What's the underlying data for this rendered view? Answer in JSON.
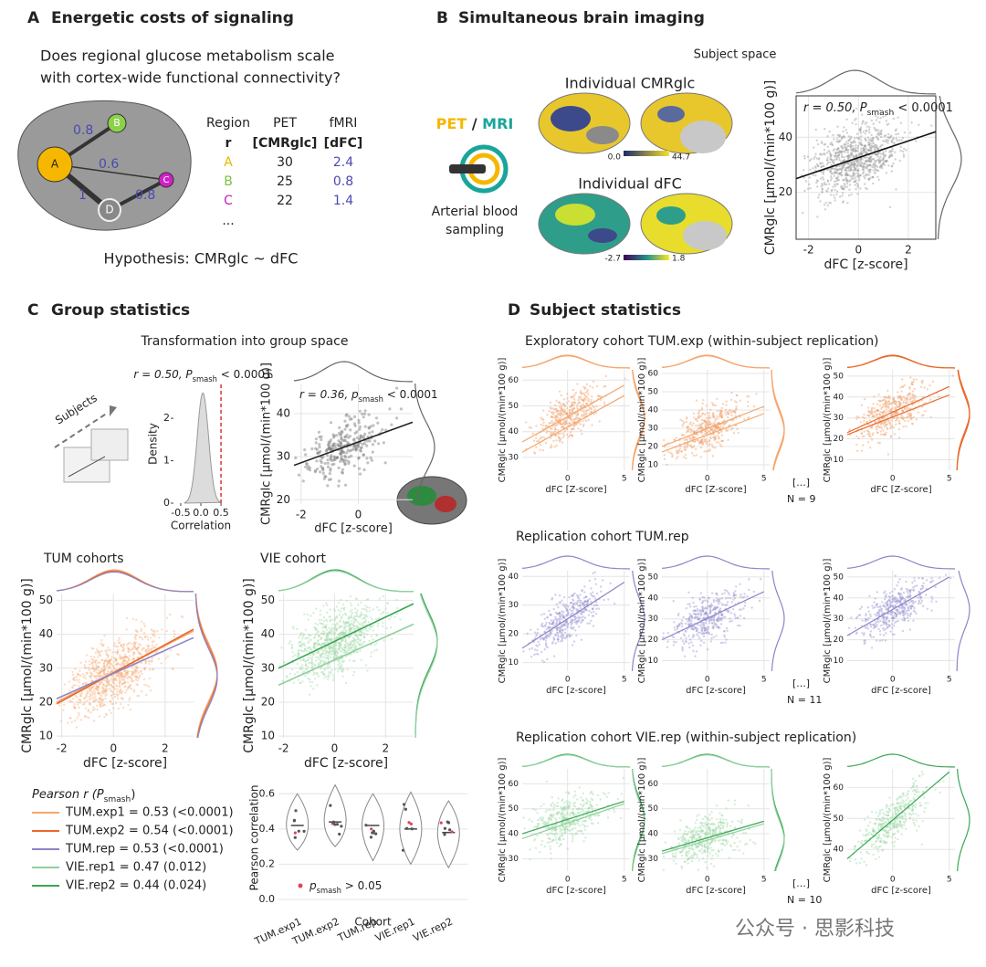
{
  "panel_a": {
    "letter": "A",
    "title": "Energetic costs of signaling",
    "question": [
      "Does regional glucose metabolism scale",
      "with cortex-wide functional connectivity?"
    ],
    "nodes": [
      "A",
      "B",
      "C",
      "D"
    ],
    "edges": [
      "0.8",
      "0.6",
      "1",
      "0.8"
    ],
    "table": {
      "header": [
        "Region",
        "PET",
        "fMRI"
      ],
      "units": [
        "r",
        "[CMRglc]",
        "[dFC]"
      ],
      "rows": [
        [
          "A",
          "30",
          "2.4"
        ],
        [
          "B",
          "25",
          "0.8"
        ],
        [
          "C",
          "22",
          "1.4"
        ]
      ],
      "more": "..."
    },
    "hypothesis": "Hypothesis: CMRglc ~ dFC"
  },
  "panel_b": {
    "letter": "B",
    "title": "Simultaneous brain imaging",
    "pet": "PET",
    "slash": " / ",
    "mri": "MRI",
    "sampling": [
      "Arterial blood",
      "sampling"
    ],
    "cmr_title": "Individual CMRglc",
    "cmr_range": [
      "0.0",
      "44.7"
    ],
    "dfc_title": "Individual dFC",
    "dfc_range": [
      "-2.7",
      "1.8"
    ],
    "space": "Subject space",
    "chart": {
      "type": "scatter",
      "annotation": {
        "r": "r = 0.50, ",
        "p": "P",
        "sub": "smash",
        "rest": " < 0.0001"
      },
      "xlabel": "dFC [z-score]",
      "ylabel": "CMRglc [µmol/(min*100 g)]",
      "xlim": [
        -2.5,
        3.1
      ],
      "ylim": [
        3,
        55
      ],
      "xticks": [
        -2,
        0,
        2
      ],
      "yticks": [
        20,
        40
      ],
      "grid": true,
      "cloud": "#9a9a9a",
      "fits": [
        {
          "color": "#111111",
          "x": [
            -2.5,
            3.1
          ],
          "y": [
            25,
            42
          ]
        }
      ]
    }
  },
  "panel_c": {
    "letter": "C",
    "title": "Group statistics",
    "transform": "Transformation into group space",
    "subjects": "Subjects",
    "density": {
      "type": "density",
      "annotation": {
        "r": "r = 0.50, ",
        "p": "P",
        "sub": "smash",
        "rest": " < 0.0001"
      },
      "xlabel": "Correlation",
      "ylabel": "Density",
      "xlim": [
        -0.68,
        0.68
      ],
      "ylim": [
        0,
        2.8
      ],
      "xticks": [
        -0.5,
        {
          "value": 0,
          "label": "0.0"
        },
        0.5
      ],
      "yticks": [
        0,
        1,
        2
      ],
      "observed": 0.5,
      "color": "#dcdcdc",
      "line_color": "#e03030"
    },
    "group_scatter": {
      "type": "scatter",
      "annotation": {
        "r": "r = 0.36, ",
        "p": "p",
        "sub": "smash",
        "rest": " < 0.0001"
      },
      "xlabel": "dFC [z-score]",
      "ylabel": "CMRglc [µmol/(min*100 g)]",
      "xlim": [
        -2.25,
        1.9
      ],
      "ylim": [
        19,
        47
      ],
      "xticks": [
        -2,
        0
      ],
      "yticks": [
        20,
        30,
        40
      ],
      "grid": true,
      "cloud": "#777777",
      "fits": [
        {
          "color": "#222222",
          "x": [
            -2.25,
            1.9
          ],
          "y": [
            28,
            38
          ]
        }
      ]
    },
    "tum": {
      "type": "scatter",
      "title": "TUM cohorts",
      "xlabel": "dFC [z-score]",
      "ylabel": "CMRglc [µmol/(min*100 g)]",
      "xlim": [
        -2.2,
        3.1
      ],
      "ylim": [
        9.5,
        52
      ],
      "xticks": [
        -2,
        0,
        2
      ],
      "yticks": [
        10,
        20,
        30,
        40,
        50
      ],
      "grid": true,
      "cloud": "#f7b27f",
      "fits": [
        {
          "color": "#f5a66d",
          "x": [
            -2.2,
            3.1
          ],
          "y": [
            20,
            41
          ]
        },
        {
          "color": "#e8692c",
          "x": [
            -2.2,
            3.1
          ],
          "y": [
            19.5,
            41.5
          ]
        },
        {
          "color": "#8b85c8",
          "x": [
            -2.2,
            3.1
          ],
          "y": [
            21,
            39
          ]
        }
      ]
    },
    "vie": {
      "type": "scatter",
      "title": "VIE cohort",
      "xlabel": "dFC [z-score]",
      "ylabel": "CMRglc [µmol/(min*100 g)]",
      "xlim": [
        -2.2,
        3.1
      ],
      "ylim": [
        9.5,
        52
      ],
      "xticks": [
        -2,
        0,
        2
      ],
      "yticks": [
        10,
        20,
        30,
        40,
        50
      ],
      "grid": true,
      "cloud": "#a6dcae",
      "fits": [
        {
          "color": "#3aa655",
          "x": [
            -2.2,
            3.1
          ],
          "y": [
            30,
            49
          ]
        },
        {
          "color": "#8fd19e",
          "x": [
            -2.2,
            3.1
          ],
          "y": [
            25,
            43
          ]
        }
      ]
    },
    "legend": {
      "title": {
        "pre": "Pearson r (",
        "p": "P",
        "sub": "smash",
        "post": ")"
      },
      "entries": [
        {
          "name": "TUM.exp1 = 0.53 (<0.0001)",
          "color": "#f5a66d"
        },
        {
          "name": "TUM.exp2 = 0.54 (<0.0001)",
          "color": "#e8692c"
        },
        {
          "name": "TUM.rep = 0.53 (<0.0001)",
          "color": "#8b85c8"
        },
        {
          "name": "VIE.rep1 = 0.47 (0.012)",
          "color": "#8fd19e"
        },
        {
          "name": "VIE.rep2 = 0.44 (0.024)",
          "color": "#3aa655"
        }
      ]
    },
    "violin": {
      "type": "violin",
      "xlabel": "Cohort",
      "ylabel": "Pearson correlation",
      "categories": [
        "TUM.exp1",
        "TUM.exp2",
        "TUM.rep",
        "VIE.rep1",
        "VIE.rep2"
      ],
      "medians": [
        0.42,
        0.44,
        0.42,
        0.4,
        0.38
      ],
      "ylim": [
        0,
        0.7
      ],
      "yticks": [
        {
          "value": 0,
          "label": "0.0"
        },
        0.2,
        0.4,
        0.6
      ],
      "grid": true,
      "color": "#888888",
      "legend": {
        "p": "p",
        "sub": "smash",
        "rest": " > 0.05",
        "color": "#e8405a"
      }
    }
  },
  "panel_d": {
    "letter": "D",
    "title": "Subject statistics",
    "ylabel": "CMRglc [µmol/(min*100 g)]",
    "rows": [
      {
        "title": "Exploratory cohort TUM.exp (within-subject replication)",
        "xlabel": "dFC [Z-score]",
        "more": "[...]",
        "n": "N = 9",
        "color": "#f0a06a",
        "plots": [
          {
            "xlim": [
              -4,
              5.5
            ],
            "ylim": [
              25,
              64
            ],
            "xticks": [
              0,
              5
            ],
            "yticks": [
              30,
              40,
              50,
              60
            ],
            "grid": true,
            "fits": [
              {
                "color": "#f5a66d",
                "x": [
                  -4,
                  5
                ],
                "y": [
                  36,
                  58
                ]
              },
              {
                "color": "#f5a66d",
                "x": [
                  -4,
                  5
                ],
                "y": [
                  32,
                  54
                ]
              }
            ]
          },
          {
            "xlim": [
              -4,
              5.5
            ],
            "ylim": [
              7,
              62
            ],
            "xticks": [
              0,
              5
            ],
            "yticks": [
              10,
              20,
              30,
              40,
              50,
              60
            ],
            "grid": true,
            "fits": [
              {
                "color": "#f5a66d",
                "x": [
                  -4,
                  5
                ],
                "y": [
                  20,
                  42
                ]
              },
              {
                "color": "#f5a66d",
                "x": [
                  -4,
                  5
                ],
                "y": [
                  17,
                  38
                ]
              }
            ]
          },
          {
            "xlim": [
              -4,
              5.5
            ],
            "ylim": [
              5,
              53
            ],
            "xticks": [
              0,
              5
            ],
            "yticks": [
              10,
              20,
              30,
              40,
              50
            ],
            "grid": true,
            "fits": [
              {
                "color": "#e8692c",
                "x": [
                  -4,
                  5
                ],
                "y": [
                  23,
                  45
                ]
              },
              {
                "color": "#e8692c",
                "x": [
                  -4,
                  5
                ],
                "y": [
                  22,
                  41
                ]
              }
            ]
          }
        ]
      },
      {
        "title": "Replication cohort TUM.rep",
        "xlabel": "dFC [z-score]",
        "more": "[...]",
        "n": "N = 11",
        "color": "#9b96d2",
        "plots": [
          {
            "xlim": [
              -4,
              5.5
            ],
            "ylim": [
              7,
              42
            ],
            "xticks": [
              0,
              5
            ],
            "yticks": [
              10,
              20,
              30,
              40
            ],
            "grid": true,
            "fits": [
              {
                "color": "#8b85c8",
                "x": [
                  -4,
                  5
                ],
                "y": [
                  15,
                  38
                ]
              }
            ]
          },
          {
            "xlim": [
              -4,
              5.5
            ],
            "ylim": [
              5,
              53
            ],
            "xticks": [
              0,
              5
            ],
            "yticks": [
              10,
              20,
              30,
              40,
              50
            ],
            "grid": true,
            "fits": [
              {
                "color": "#8b85c8",
                "x": [
                  -4,
                  5
                ],
                "y": [
                  20,
                  43
                ]
              }
            ]
          },
          {
            "xlim": [
              -4,
              5.5
            ],
            "ylim": [
              5,
              53
            ],
            "xticks": [
              0,
              5
            ],
            "yticks": [
              10,
              20,
              30,
              40,
              50
            ],
            "grid": true,
            "fits": [
              {
                "color": "#8b85c8",
                "x": [
                  -4,
                  5
                ],
                "y": [
                  22,
                  50
                ]
              }
            ]
          }
        ]
      },
      {
        "title": "Replication cohort VIE.rep (within-subject replication)",
        "xlabel": "dFC [z-score]",
        "more": "[...]",
        "n": "N = 10",
        "color": "#9fd9a8",
        "plots": [
          {
            "xlim": [
              -4,
              5.5
            ],
            "ylim": [
              25,
              66
            ],
            "xticks": [
              0,
              5
            ],
            "yticks": [
              30,
              40,
              50,
              60
            ],
            "grid": true,
            "fits": [
              {
                "color": "#3aa655",
                "x": [
                  -4,
                  5
                ],
                "y": [
                  40,
                  53
                ]
              },
              {
                "color": "#8fd19e",
                "x": [
                  -4,
                  5
                ],
                "y": [
                  38,
                  52
                ]
              }
            ]
          },
          {
            "xlim": [
              -4,
              5.5
            ],
            "ylim": [
              25,
              66
            ],
            "xticks": [
              0,
              5
            ],
            "yticks": [
              30,
              40,
              50,
              60
            ],
            "grid": true,
            "fits": [
              {
                "color": "#3aa655",
                "x": [
                  -4,
                  5
                ],
                "y": [
                  33,
                  45
                ]
              },
              {
                "color": "#8fd19e",
                "x": [
                  -4,
                  5
                ],
                "y": [
                  32,
                  44
                ]
              }
            ]
          },
          {
            "xlim": [
              -4,
              5.5
            ],
            "ylim": [
              33,
              66
            ],
            "xticks": [
              0,
              5
            ],
            "yticks": [
              40,
              50,
              60
            ],
            "grid": true,
            "fits": [
              {
                "color": "#3aa655",
                "x": [
                  -4,
                  5
                ],
                "y": [
                  37,
                  65
                ]
              }
            ]
          }
        ]
      }
    ]
  },
  "watermark": "公众号 · 思影科技"
}
